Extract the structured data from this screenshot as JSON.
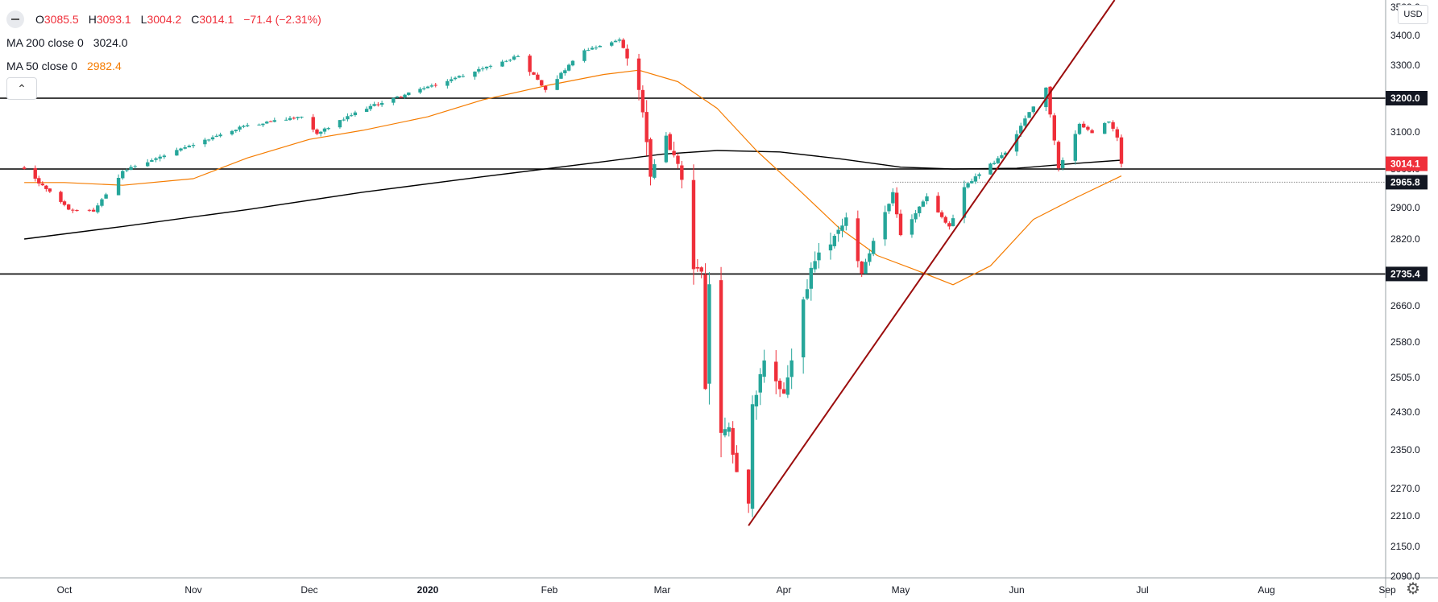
{
  "legend": {
    "ohlc": {
      "o_label": "O",
      "o_value": "3085.5",
      "h_label": "H",
      "h_value": "3093.1",
      "l_label": "L",
      "l_value": "3004.2",
      "c_label": "C",
      "c_value": "3014.1",
      "change": "−71.4 (−2.31%)"
    },
    "ma200": {
      "label": "MA 200 close 0",
      "value": "3024.0"
    },
    "ma50": {
      "label": "MA 50 close 0",
      "value": "2982.4"
    },
    "collapse_glyph": "⌃"
  },
  "currency": "USD",
  "settings_glyph": "⚙",
  "colors": {
    "up": "#26a69a",
    "down": "#ef2f3a",
    "ma50": "#f57c00",
    "ma200": "#000000",
    "trendline": "#9b0d0d",
    "level": "#000000"
  },
  "chart_data": {
    "type": "candlestick",
    "y_ticks": [
      "3500.0",
      "3400.0",
      "3300.0",
      "3200.0",
      "3100.0",
      "3000.0",
      "2900.0",
      "2820.0",
      "2740.0",
      "2660.0",
      "2580.0",
      "2505.0",
      "2430.0",
      "2350.0",
      "2270.0",
      "2210.0",
      "2150.0",
      "2090.0"
    ],
    "x_ticks": [
      {
        "label": "Oct",
        "date": "2019-10-01",
        "bold": false
      },
      {
        "label": "Nov",
        "date": "2019-11-01",
        "bold": false
      },
      {
        "label": "Dec",
        "date": "2019-12-01",
        "bold": false
      },
      {
        "label": "2020",
        "date": "2020-01-01",
        "bold": true
      },
      {
        "label": "Feb",
        "date": "2020-02-01",
        "bold": false
      },
      {
        "label": "Mar",
        "date": "2020-03-01",
        "bold": false
      },
      {
        "label": "Apr",
        "date": "2020-04-01",
        "bold": false
      },
      {
        "label": "May",
        "date": "2020-05-01",
        "bold": false
      },
      {
        "label": "Jun",
        "date": "2020-06-01",
        "bold": false
      },
      {
        "label": "Jul",
        "date": "2020-07-01",
        "bold": false
      },
      {
        "label": "Aug",
        "date": "2020-08-01",
        "bold": false
      },
      {
        "label": "Sep",
        "date": "2020-09-01",
        "bold": false
      }
    ],
    "levels": [
      3200.0,
      3000.0,
      2735.4
    ],
    "price_labels": [
      {
        "value": "3200.0",
        "price": 3200.0,
        "style": "black"
      },
      {
        "value": "3014.1",
        "price": 3014.1,
        "style": "red"
      },
      {
        "value": "2965.8",
        "price": 2965.8,
        "style": "black"
      },
      {
        "value": "2735.4",
        "price": 2735.4,
        "style": "black"
      }
    ],
    "dotted_line": {
      "price": 2965.8,
      "from_date": "2020-04-29"
    },
    "trendline": {
      "start": {
        "date": "2020-03-23",
        "price": 2191
      },
      "end": {
        "date": "2020-06-08",
        "price": 3199
      }
    },
    "ma200": [
      {
        "date": "2019-09-20",
        "price": 2820
      },
      {
        "date": "2019-10-15",
        "price": 2852
      },
      {
        "date": "2019-11-15",
        "price": 2895
      },
      {
        "date": "2019-12-15",
        "price": 2940
      },
      {
        "date": "2020-01-15",
        "price": 2980
      },
      {
        "date": "2020-02-15",
        "price": 3020
      },
      {
        "date": "2020-03-01",
        "price": 3040
      },
      {
        "date": "2020-03-15",
        "price": 3050
      },
      {
        "date": "2020-03-31",
        "price": 3046
      },
      {
        "date": "2020-04-15",
        "price": 3028
      },
      {
        "date": "2020-05-01",
        "price": 3005
      },
      {
        "date": "2020-05-15",
        "price": 3000
      },
      {
        "date": "2020-06-01",
        "price": 3002
      },
      {
        "date": "2020-06-15",
        "price": 3015
      },
      {
        "date": "2020-06-26",
        "price": 3024
      }
    ],
    "ma50": [
      {
        "date": "2019-09-20",
        "price": 2965
      },
      {
        "date": "2019-10-01",
        "price": 2965
      },
      {
        "date": "2019-10-15",
        "price": 2958
      },
      {
        "date": "2019-11-01",
        "price": 2975
      },
      {
        "date": "2019-11-15",
        "price": 3030
      },
      {
        "date": "2019-12-01",
        "price": 3080
      },
      {
        "date": "2019-12-15",
        "price": 3105
      },
      {
        "date": "2020-01-01",
        "price": 3145
      },
      {
        "date": "2020-01-15",
        "price": 3195
      },
      {
        "date": "2020-02-01",
        "price": 3240
      },
      {
        "date": "2020-02-15",
        "price": 3272
      },
      {
        "date": "2020-02-24",
        "price": 3285
      },
      {
        "date": "2020-03-05",
        "price": 3250
      },
      {
        "date": "2020-03-15",
        "price": 3170
      },
      {
        "date": "2020-03-25",
        "price": 3050
      },
      {
        "date": "2020-04-05",
        "price": 2945
      },
      {
        "date": "2020-04-15",
        "price": 2850
      },
      {
        "date": "2020-04-25",
        "price": 2780
      },
      {
        "date": "2020-05-05",
        "price": 2745
      },
      {
        "date": "2020-05-15",
        "price": 2710
      },
      {
        "date": "2020-05-25",
        "price": 2755
      },
      {
        "date": "2020-06-05",
        "price": 2870
      },
      {
        "date": "2020-06-15",
        "price": 2925
      },
      {
        "date": "2020-06-26",
        "price": 2982
      }
    ],
    "anchors": [
      {
        "date": "2019-09-20",
        "price": 3000
      },
      {
        "date": "2019-10-02",
        "price": 2895
      },
      {
        "date": "2019-10-08",
        "price": 2890
      },
      {
        "date": "2019-10-15",
        "price": 2995
      },
      {
        "date": "2019-11-01",
        "price": 3065
      },
      {
        "date": "2019-11-15",
        "price": 3120
      },
      {
        "date": "2019-11-29",
        "price": 3145
      },
      {
        "date": "2019-12-03",
        "price": 3095
      },
      {
        "date": "2019-12-15",
        "price": 3168
      },
      {
        "date": "2019-12-31",
        "price": 3230
      },
      {
        "date": "2020-01-15",
        "price": 3290
      },
      {
        "date": "2020-01-24",
        "price": 3330
      },
      {
        "date": "2020-01-31",
        "price": 3225
      },
      {
        "date": "2020-02-10",
        "price": 3350
      },
      {
        "date": "2020-02-19",
        "price": 3386
      },
      {
        "date": "2020-02-24",
        "price": 3225
      },
      {
        "date": "2020-02-27",
        "price": 2980
      },
      {
        "date": "2020-03-02",
        "price": 3090
      },
      {
        "date": "2020-03-06",
        "price": 2972
      },
      {
        "date": "2020-03-09",
        "price": 2747
      },
      {
        "date": "2020-03-11",
        "price": 2741
      },
      {
        "date": "2020-03-12",
        "price": 2480
      },
      {
        "date": "2020-03-13",
        "price": 2711
      },
      {
        "date": "2020-03-16",
        "price": 2386
      },
      {
        "date": "2020-03-18",
        "price": 2398
      },
      {
        "date": "2020-03-20",
        "price": 2304
      },
      {
        "date": "2020-03-23",
        "price": 2237
      },
      {
        "date": "2020-03-24",
        "price": 2447
      },
      {
        "date": "2020-03-27",
        "price": 2541
      },
      {
        "date": "2020-04-01",
        "price": 2470
      },
      {
        "date": "2020-04-08",
        "price": 2750
      },
      {
        "date": "2020-04-17",
        "price": 2875
      },
      {
        "date": "2020-04-21",
        "price": 2736
      },
      {
        "date": "2020-04-29",
        "price": 2940
      },
      {
        "date": "2020-05-01",
        "price": 2830
      },
      {
        "date": "2020-05-08",
        "price": 2929
      },
      {
        "date": "2020-05-14",
        "price": 2852
      },
      {
        "date": "2020-05-18",
        "price": 2953
      },
      {
        "date": "2020-05-29",
        "price": 3044
      },
      {
        "date": "2020-06-08",
        "price": 3232
      },
      {
        "date": "2020-06-11",
        "price": 3002
      },
      {
        "date": "2020-06-16",
        "price": 3124
      },
      {
        "date": "2020-06-19",
        "price": 3097
      },
      {
        "date": "2020-06-23",
        "price": 3131
      },
      {
        "date": "2020-06-25",
        "price": 3085
      },
      {
        "date": "2020-06-26",
        "price": 3014.1
      }
    ]
  }
}
